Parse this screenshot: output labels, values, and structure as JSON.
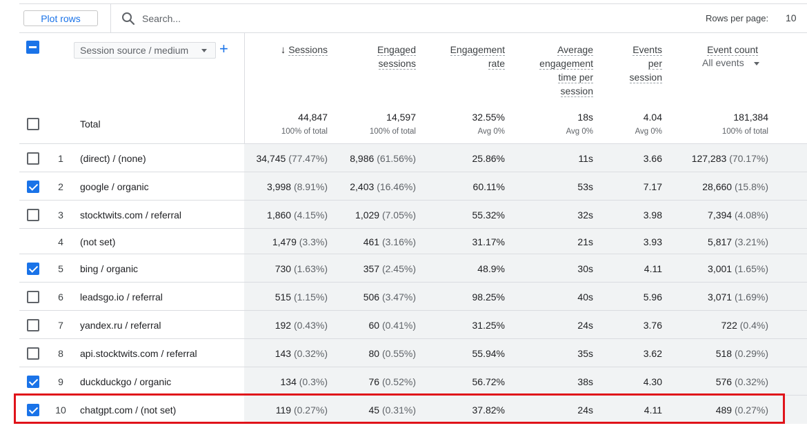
{
  "toolbar": {
    "plot_rows_label": "Plot rows",
    "search_placeholder": "Search...",
    "rows_per_page_label": "Rows per page:",
    "rows_per_page_value": "10"
  },
  "header": {
    "dimension_select": "Session source / medium",
    "add_dimension": "+",
    "columns": [
      {
        "key": "sessions",
        "label": "Sessions",
        "sorted": true
      },
      {
        "key": "engaged",
        "label": "Engaged sessions"
      },
      {
        "key": "engrate",
        "label": "Engagement rate"
      },
      {
        "key": "avgtime",
        "label": "Average engagement time per session"
      },
      {
        "key": "eps",
        "label": "Events per session"
      },
      {
        "key": "events",
        "label": "Event count",
        "sub": "All events"
      }
    ]
  },
  "totals": {
    "label": "Total",
    "sessions": "44,847",
    "sessions_sub": "100% of total",
    "engaged": "14,597",
    "engaged_sub": "100% of total",
    "engrate": "32.55%",
    "engrate_sub": "Avg 0%",
    "avgtime": "18s",
    "avgtime_sub": "Avg 0%",
    "eps": "4.04",
    "eps_sub": "Avg 0%",
    "events": "181,384",
    "events_sub": "100% of total"
  },
  "rows": [
    {
      "idx": "1",
      "name": "(direct) / (none)",
      "checkbox": true,
      "checked": false,
      "sessions": "34,745",
      "sessions_pct": "(77.47%)",
      "engaged": "8,986",
      "engaged_pct": "(61.56%)",
      "engrate": "25.86%",
      "avgtime": "11s",
      "eps": "3.66",
      "events": "127,283",
      "events_pct": "(70.17%)"
    },
    {
      "idx": "2",
      "name": "google / organic",
      "checkbox": true,
      "checked": true,
      "sessions": "3,998",
      "sessions_pct": "(8.91%)",
      "engaged": "2,403",
      "engaged_pct": "(16.46%)",
      "engrate": "60.11%",
      "avgtime": "53s",
      "eps": "7.17",
      "events": "28,660",
      "events_pct": "(15.8%)"
    },
    {
      "idx": "3",
      "name": "stocktwits.com / referral",
      "checkbox": true,
      "checked": false,
      "sessions": "1,860",
      "sessions_pct": "(4.15%)",
      "engaged": "1,029",
      "engaged_pct": "(7.05%)",
      "engrate": "55.32%",
      "avgtime": "32s",
      "eps": "3.98",
      "events": "7,394",
      "events_pct": "(4.08%)"
    },
    {
      "idx": "4",
      "name": "(not set)",
      "checkbox": false,
      "checked": false,
      "sessions": "1,479",
      "sessions_pct": "(3.3%)",
      "engaged": "461",
      "engaged_pct": "(3.16%)",
      "engrate": "31.17%",
      "avgtime": "21s",
      "eps": "3.93",
      "events": "5,817",
      "events_pct": "(3.21%)"
    },
    {
      "idx": "5",
      "name": "bing / organic",
      "checkbox": true,
      "checked": true,
      "sessions": "730",
      "sessions_pct": "(1.63%)",
      "engaged": "357",
      "engaged_pct": "(2.45%)",
      "engrate": "48.9%",
      "avgtime": "30s",
      "eps": "4.11",
      "events": "3,001",
      "events_pct": "(1.65%)"
    },
    {
      "idx": "6",
      "name": "leadsgo.io / referral",
      "checkbox": true,
      "checked": false,
      "sessions": "515",
      "sessions_pct": "(1.15%)",
      "engaged": "506",
      "engaged_pct": "(3.47%)",
      "engrate": "98.25%",
      "avgtime": "40s",
      "eps": "5.96",
      "events": "3,071",
      "events_pct": "(1.69%)"
    },
    {
      "idx": "7",
      "name": "yandex.ru / referral",
      "checkbox": true,
      "checked": false,
      "sessions": "192",
      "sessions_pct": "(0.43%)",
      "engaged": "60",
      "engaged_pct": "(0.41%)",
      "engrate": "31.25%",
      "avgtime": "24s",
      "eps": "3.76",
      "events": "722",
      "events_pct": "(0.4%)"
    },
    {
      "idx": "8",
      "name": "api.stocktwits.com / referral",
      "checkbox": true,
      "checked": false,
      "sessions": "143",
      "sessions_pct": "(0.32%)",
      "engaged": "80",
      "engaged_pct": "(0.55%)",
      "engrate": "55.94%",
      "avgtime": "35s",
      "eps": "3.62",
      "events": "518",
      "events_pct": "(0.29%)"
    },
    {
      "idx": "9",
      "name": "duckduckgo / organic",
      "checkbox": true,
      "checked": true,
      "sessions": "134",
      "sessions_pct": "(0.3%)",
      "engaged": "76",
      "engaged_pct": "(0.52%)",
      "engrate": "56.72%",
      "avgtime": "38s",
      "eps": "4.30",
      "events": "576",
      "events_pct": "(0.32%)"
    },
    {
      "idx": "10",
      "name": "chatgpt.com / (not set)",
      "checkbox": true,
      "checked": true,
      "sessions": "119",
      "sessions_pct": "(0.27%)",
      "engaged": "45",
      "engaged_pct": "(0.31%)",
      "engrate": "37.82%",
      "avgtime": "24s",
      "eps": "4.11",
      "events": "489",
      "events_pct": "(0.27%)"
    }
  ],
  "colors": {
    "accent": "#1a73e8",
    "highlight": "#e0131a"
  }
}
